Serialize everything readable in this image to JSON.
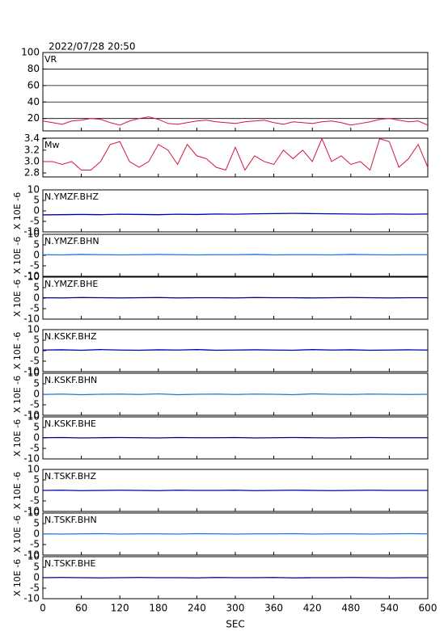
{
  "chart_data": [
    {
      "type": "line",
      "title": "2022/07/28 20:50",
      "label": "VR",
      "color": "#d4143c",
      "grid": true,
      "x": [
        0,
        15,
        30,
        45,
        60,
        75,
        90,
        105,
        120,
        135,
        150,
        165,
        180,
        195,
        210,
        225,
        240,
        255,
        270,
        285,
        300,
        315,
        330,
        345,
        360,
        375,
        390,
        405,
        420,
        435,
        450,
        465,
        480,
        495,
        510,
        525,
        540,
        555,
        570,
        585,
        600
      ],
      "values": [
        17,
        15,
        13,
        17,
        18,
        20,
        19,
        15,
        12,
        17,
        20,
        22,
        19,
        14,
        13,
        15,
        17,
        18,
        16,
        15,
        14,
        16,
        17,
        18,
        15,
        13,
        16,
        15,
        14,
        16,
        17,
        15,
        12,
        14,
        16,
        19,
        20,
        18,
        16,
        17,
        12
      ],
      "xlim": [
        0,
        600
      ],
      "ylim": [
        5,
        100
      ],
      "yticks": [
        20,
        40,
        60,
        80,
        100
      ]
    },
    {
      "type": "line",
      "label": "Mw",
      "color": "#d4143c",
      "x": [
        0,
        15,
        30,
        45,
        60,
        75,
        90,
        105,
        120,
        135,
        150,
        165,
        180,
        195,
        210,
        225,
        240,
        255,
        270,
        285,
        300,
        315,
        330,
        345,
        360,
        375,
        390,
        405,
        420,
        435,
        450,
        465,
        480,
        495,
        510,
        525,
        540,
        555,
        570,
        585,
        600
      ],
      "values": [
        3.0,
        3.0,
        2.95,
        3.0,
        2.85,
        2.85,
        3.0,
        3.3,
        3.35,
        3.0,
        2.9,
        3.0,
        3.3,
        3.2,
        2.95,
        3.3,
        3.1,
        3.05,
        2.9,
        2.85,
        3.25,
        2.85,
        3.1,
        3.0,
        2.95,
        3.2,
        3.05,
        3.2,
        3.0,
        3.4,
        3.0,
        3.1,
        2.95,
        3.0,
        2.85,
        3.4,
        3.35,
        2.9,
        3.05,
        3.3,
        2.9
      ],
      "xlim": [
        0,
        600
      ],
      "ylim": [
        2.73,
        3.41
      ],
      "yticks": [
        2.8,
        {
          "value": 3,
          "label": "3.0"
        },
        3.2,
        3.4
      ]
    },
    {
      "type": "line",
      "label": "N.YMZF.BHZ",
      "ylabel": "X 10E -6",
      "color": "#0000b4",
      "x": [
        0,
        30,
        60,
        90,
        120,
        150,
        180,
        210,
        240,
        270,
        300,
        330,
        360,
        390,
        420,
        450,
        480,
        510,
        540,
        570,
        600
      ],
      "values": [
        -1.9,
        -1.8,
        -1.7,
        -1.8,
        -1.6,
        -1.7,
        -1.8,
        -1.6,
        -1.7,
        -1.5,
        -1.6,
        -1.4,
        -1.3,
        -1.2,
        -1.3,
        -1.4,
        -1.5,
        -1.6,
        -1.5,
        -1.6,
        -1.5
      ],
      "xlim": [
        0,
        600
      ],
      "ylim": [
        -10,
        10
      ],
      "yticks": [
        10,
        5,
        0,
        -5,
        -10
      ]
    },
    {
      "type": "line",
      "label": "N.YMZF.BHN",
      "ylabel": "X 10E -6",
      "color": "#1e78dc",
      "x": [
        0,
        30,
        60,
        90,
        120,
        150,
        180,
        210,
        240,
        270,
        300,
        330,
        360,
        390,
        420,
        450,
        480,
        510,
        540,
        570,
        600
      ],
      "values": [
        0.3,
        0.2,
        0.4,
        0.3,
        0.2,
        0.3,
        0.4,
        0.3,
        0.2,
        0.3,
        0.3,
        0.4,
        0.2,
        0.3,
        0.3,
        0.2,
        0.4,
        0.3,
        0.2,
        0.3,
        0.3
      ],
      "xlim": [
        0,
        600
      ],
      "ylim": [
        -10,
        10
      ],
      "yticks": [
        10,
        5,
        0,
        -5,
        -10
      ]
    },
    {
      "type": "line",
      "label": "N.YMZF.BHE",
      "ylabel": "X 10E -6",
      "color": "#000080",
      "x": [
        0,
        30,
        60,
        90,
        120,
        150,
        180,
        210,
        240,
        270,
        300,
        330,
        360,
        390,
        420,
        450,
        480,
        510,
        540,
        570,
        600
      ],
      "values": [
        0.2,
        0.1,
        0.3,
        0.2,
        0.1,
        0.2,
        0.3,
        0.1,
        0.2,
        0.2,
        0.1,
        0.3,
        0.2,
        0.2,
        0.1,
        0.2,
        0.3,
        0.2,
        0.1,
        0.2,
        0.2
      ],
      "xlim": [
        0,
        600
      ],
      "ylim": [
        -10,
        10
      ],
      "yticks": [
        10,
        5,
        0,
        -5,
        -10
      ]
    },
    {
      "type": "line",
      "label": "N.KSKF.BHZ",
      "ylabel": "X 10E -6",
      "color": "#0000b4",
      "x": [
        0,
        30,
        60,
        90,
        120,
        150,
        180,
        210,
        240,
        270,
        300,
        330,
        360,
        390,
        420,
        450,
        480,
        510,
        540,
        570,
        600
      ],
      "values": [
        0.3,
        0.4,
        0.2,
        0.5,
        0.3,
        0.2,
        0.4,
        0.3,
        0.5,
        0.2,
        0.3,
        0.4,
        0.3,
        0.2,
        0.5,
        0.3,
        0.4,
        0.2,
        0.3,
        0.4,
        0.3
      ],
      "xlim": [
        0,
        600
      ],
      "ylim": [
        -10,
        10
      ],
      "yticks": [
        10,
        5,
        0,
        -5,
        -10
      ]
    },
    {
      "type": "line",
      "label": "N.KSKF.BHN",
      "ylabel": "X 10E -6",
      "color": "#1e78dc",
      "x": [
        0,
        30,
        60,
        90,
        120,
        150,
        180,
        210,
        240,
        270,
        300,
        330,
        360,
        390,
        420,
        450,
        480,
        510,
        540,
        570,
        600
      ],
      "values": [
        -0.1,
        0.1,
        -0.2,
        0.0,
        0.1,
        -0.1,
        0.2,
        -0.2,
        0.0,
        0.1,
        -0.1,
        0.1,
        0.0,
        -0.2,
        0.2,
        0.0,
        -0.1,
        0.1,
        0.0,
        -0.1,
        0.0
      ],
      "xlim": [
        0,
        600
      ],
      "ylim": [
        -10,
        10
      ],
      "yticks": [
        10,
        5,
        0,
        -5,
        -10
      ]
    },
    {
      "type": "line",
      "label": "N.KSKF.BHE",
      "ylabel": "X 10E -6",
      "color": "#000080",
      "x": [
        0,
        30,
        60,
        90,
        120,
        150,
        180,
        210,
        240,
        270,
        300,
        330,
        360,
        390,
        420,
        450,
        480,
        510,
        540,
        570,
        600
      ],
      "values": [
        0.1,
        0.2,
        0.0,
        0.1,
        0.2,
        0.1,
        0.0,
        0.2,
        0.1,
        0.1,
        0.2,
        0.0,
        0.1,
        0.2,
        0.1,
        0.0,
        0.1,
        0.2,
        0.1,
        0.1,
        0.1
      ],
      "xlim": [
        0,
        600
      ],
      "ylim": [
        -10,
        10
      ],
      "yticks": [
        10,
        5,
        0,
        -5,
        -10
      ]
    },
    {
      "type": "line",
      "label": "N.TSKF.BHZ",
      "ylabel": "X 10E -6",
      "color": "#0000b4",
      "x": [
        0,
        30,
        60,
        90,
        120,
        150,
        180,
        210,
        240,
        270,
        300,
        330,
        360,
        390,
        420,
        450,
        480,
        510,
        540,
        570,
        600
      ],
      "values": [
        0.0,
        0.1,
        -0.1,
        0.0,
        0.1,
        0.0,
        -0.1,
        0.1,
        0.0,
        0.0,
        0.1,
        -0.1,
        0.0,
        0.1,
        0.0,
        -0.1,
        0.0,
        0.1,
        0.0,
        0.0,
        0.0
      ],
      "xlim": [
        0,
        600
      ],
      "ylim": [
        -10,
        10
      ],
      "yticks": [
        10,
        5,
        0,
        -5,
        -10
      ]
    },
    {
      "type": "line",
      "label": "N.TSKF.BHN",
      "ylabel": "X 10E -6",
      "color": "#1e78dc",
      "x": [
        0,
        30,
        60,
        90,
        120,
        150,
        180,
        210,
        240,
        270,
        300,
        330,
        360,
        390,
        420,
        450,
        480,
        510,
        540,
        570,
        600
      ],
      "values": [
        0.1,
        0.0,
        0.1,
        0.2,
        0.0,
        0.1,
        0.1,
        0.0,
        0.2,
        0.1,
        0.0,
        0.1,
        0.1,
        0.2,
        0.0,
        0.1,
        0.1,
        0.0,
        0.1,
        0.2,
        0.1
      ],
      "xlim": [
        0,
        600
      ],
      "ylim": [
        -10,
        10
      ],
      "yticks": [
        10,
        5,
        0,
        -5,
        -10
      ]
    },
    {
      "type": "line",
      "label": "N.TSKF.BHE",
      "ylabel": "X 10E -6",
      "color": "#000080",
      "x": [
        0,
        30,
        60,
        90,
        120,
        150,
        180,
        210,
        240,
        270,
        300,
        330,
        360,
        390,
        420,
        450,
        480,
        510,
        540,
        570,
        600
      ],
      "values": [
        0.0,
        0.1,
        0.0,
        -0.1,
        0.0,
        0.1,
        0.0,
        0.0,
        -0.1,
        0.1,
        0.0,
        0.0,
        0.1,
        -0.1,
        0.0,
        0.0,
        0.1,
        0.0,
        -0.1,
        0.0,
        0.0
      ],
      "xlim": [
        0,
        600
      ],
      "ylim": [
        -10,
        10
      ],
      "yticks": [
        10,
        5,
        0,
        -5,
        -10
      ],
      "xticks": [
        0,
        60,
        120,
        180,
        240,
        300,
        360,
        420,
        480,
        540,
        600
      ],
      "xlabel": "SEC"
    }
  ]
}
